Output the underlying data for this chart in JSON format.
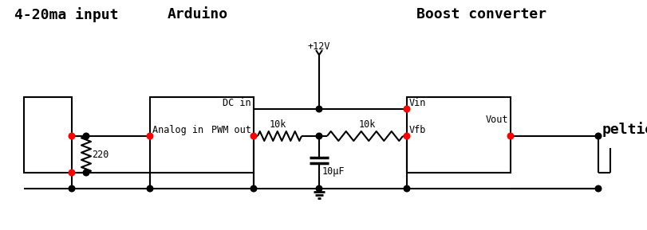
{
  "bg_color": "#ffffff",
  "line_color": "#000000",
  "red_dot_color": "#ff0000",
  "black_dot_color": "#000000",
  "text_color": "#000000",
  "labels": {
    "input": "4-20ma input",
    "arduino": "Arduino",
    "boost": "Boost converter",
    "peltier": "peltier",
    "dc_in": "DC in",
    "analog_in": "Analog in",
    "pwm_out": "PWM out",
    "vin": "Vin",
    "vout": "Vout",
    "vfb": "Vfb",
    "r1": "10k",
    "r2": "10k",
    "r3": "220",
    "cap": "10μF",
    "power": "+12V"
  },
  "figsize": [
    8.12,
    2.89
  ],
  "dpi": 100
}
